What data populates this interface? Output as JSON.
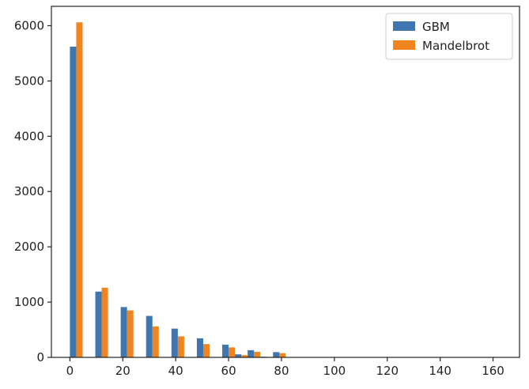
{
  "chart_data": {
    "type": "bar",
    "title": "",
    "xlabel": "",
    "ylabel": "",
    "xlim": [
      -7,
      170
    ],
    "ylim": [
      0,
      6350
    ],
    "bin_width": 4.8,
    "x": [
      2.4,
      12.0,
      21.6,
      31.2,
      40.8,
      50.4,
      60.0,
      69.6,
      79.2
    ],
    "series": [
      {
        "name": "GBM",
        "color": "#3d76b0",
        "values": [
          5620,
          1190,
          910,
          750,
          520,
          345,
          230,
          130,
          95
        ]
      },
      {
        "name": "Mandelbrot",
        "color": "#f0841f",
        "values": [
          6060,
          1260,
          850,
          560,
          380,
          240,
          180,
          100,
          75
        ]
      }
    ],
    "tail": [
      {
        "x": 64.8,
        "GBM": 55,
        "Mandelbrot": 40
      },
      {
        "x": 69.6,
        "GBM": 25,
        "Mandelbrot": 15
      },
      {
        "x": 74.4,
        "GBM": 12,
        "Mandelbrot": 8
      },
      {
        "x": 79.2,
        "GBM": 6,
        "Mandelbrot": 30
      },
      {
        "x": 84.0,
        "GBM": 4,
        "Mandelbrot": 5
      }
    ],
    "x_ticks": [
      0,
      20,
      40,
      60,
      80,
      100,
      120,
      140,
      160
    ],
    "x_tick_labels": [
      "0",
      "20",
      "40",
      "60",
      "80",
      "100",
      "120",
      "140",
      "160"
    ],
    "y_ticks": [
      0,
      1000,
      2000,
      3000,
      4000,
      5000,
      6000
    ],
    "y_tick_labels": [
      "0",
      "1000",
      "2000",
      "3000",
      "4000",
      "5000",
      "6000"
    ],
    "grid": false,
    "legend_position": "top-right"
  }
}
